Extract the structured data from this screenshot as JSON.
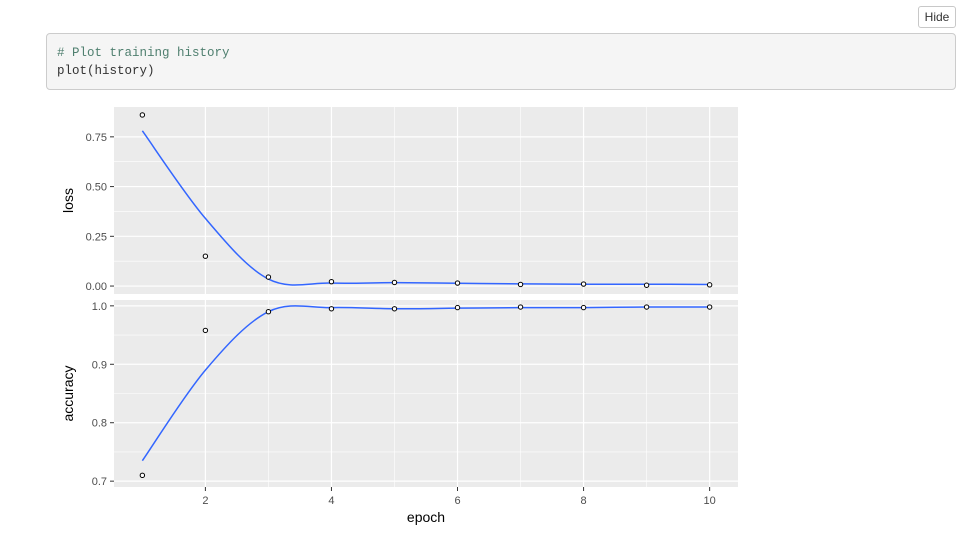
{
  "toolbar": {
    "hide_label": "Hide"
  },
  "code": {
    "comment": "# Plot training history",
    "line": "plot(history)"
  },
  "colors": {
    "panel_bg": "#ebebeb",
    "grid": "#ffffff",
    "smooth_line": "#3366ff",
    "points": "#000000"
  },
  "chart_data": {
    "type": "scatter",
    "xlabel": "epoch",
    "x": [
      1,
      2,
      3,
      4,
      5,
      6,
      7,
      8,
      9,
      10
    ],
    "x_ticks": [
      "2",
      "4",
      "6",
      "8",
      "10"
    ],
    "xlim": [
      0.55,
      10.45
    ],
    "smooth": true,
    "panels": [
      {
        "ylabel": "loss",
        "y_ticks": [
          "0.00",
          "0.25",
          "0.50",
          "0.75"
        ],
        "ylim": [
          -0.04,
          0.9
        ],
        "values": [
          0.86,
          0.15,
          0.045,
          0.022,
          0.018,
          0.015,
          0.008,
          0.01,
          0.004,
          0.006
        ],
        "smooth_values": [
          0.78,
          0.34,
          0.035,
          0.015,
          0.017,
          0.014,
          0.011,
          0.009,
          0.009,
          0.008
        ]
      },
      {
        "ylabel": "accuracy",
        "y_ticks": [
          "0.7",
          "0.8",
          "0.9",
          "1.0"
        ],
        "ylim": [
          0.69,
          1.01
        ],
        "values": [
          0.71,
          0.958,
          0.99,
          0.995,
          0.995,
          0.997,
          0.998,
          0.997,
          0.998,
          0.998
        ],
        "smooth_values": [
          0.735,
          0.89,
          0.99,
          0.997,
          0.995,
          0.996,
          0.997,
          0.997,
          0.998,
          0.998
        ]
      }
    ]
  }
}
